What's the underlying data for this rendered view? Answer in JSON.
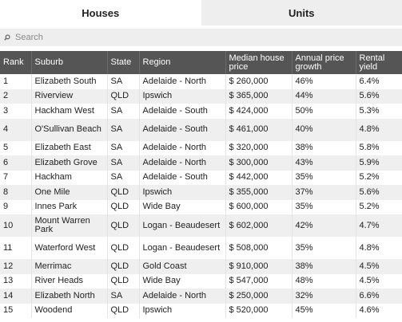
{
  "tabs": [
    {
      "label": "Houses",
      "active": true
    },
    {
      "label": "Units",
      "active": false
    }
  ],
  "search": {
    "placeholder": "Search",
    "icon": "search-icon"
  },
  "colors": {
    "header_bg": "#555555",
    "stripe": "#efefef",
    "tab_inactive": "#eeeeee"
  },
  "table": {
    "headers": [
      "Rank",
      "Suburb",
      "State",
      "Region",
      "Median house price",
      "Annual price growth",
      "Rental yield"
    ],
    "rows": [
      [
        "1",
        "Elizabeth South",
        "SA",
        "Adelaide - North",
        "$ 260,000",
        "46%",
        "6.4%"
      ],
      [
        "2",
        "Riverview",
        "QLD",
        "Ipswich",
        "$ 365,000",
        "44%",
        "5.6%"
      ],
      [
        "3",
        "Hackham West",
        "SA",
        "Adelaide - South",
        "$ 424,000",
        "50%",
        "5.3%"
      ],
      [
        "4",
        "O'Sullivan Beach",
        "SA",
        "Adelaide - South",
        "$ 461,000",
        "40%",
        "4.8%"
      ],
      [
        "5",
        "Elizabeth East",
        "SA",
        "Adelaide - North",
        "$ 320,000",
        "38%",
        "5.8%"
      ],
      [
        "6",
        "Elizabeth Grove",
        "SA",
        "Adelaide - North",
        "$ 300,000",
        "43%",
        "5.9%"
      ],
      [
        "7",
        "Hackham",
        "SA",
        "Adelaide - South",
        "$ 442,000",
        "35%",
        "5.2%"
      ],
      [
        "8",
        "One Mile",
        "QLD",
        "Ipswich",
        "$ 355,000",
        "37%",
        "5.6%"
      ],
      [
        "9",
        "Innes Park",
        "QLD",
        "Wide Bay",
        "$ 600,000",
        "35%",
        "5.2%"
      ],
      [
        "10",
        "Mount Warren Park",
        "QLD",
        "Logan - Beaudesert",
        "$ 602,000",
        "42%",
        "4.7%"
      ],
      [
        "11",
        "Waterford West",
        "QLD",
        "Logan - Beaudesert",
        "$ 508,000",
        "35%",
        "4.8%"
      ],
      [
        "12",
        "Merrimac",
        "QLD",
        "Gold Coast",
        "$ 910,000",
        "38%",
        "4.5%"
      ],
      [
        "13",
        "River Heads",
        "QLD",
        "Wide Bay",
        "$ 547,000",
        "48%",
        "4.5%"
      ],
      [
        "14",
        "Elizabeth North",
        "SA",
        "Adelaide - North",
        "$ 250,000",
        "32%",
        "6.6%"
      ],
      [
        "15",
        "Woodend",
        "QLD",
        "Ipswich",
        "$ 520,000",
        "45%",
        "4.6%"
      ]
    ]
  }
}
